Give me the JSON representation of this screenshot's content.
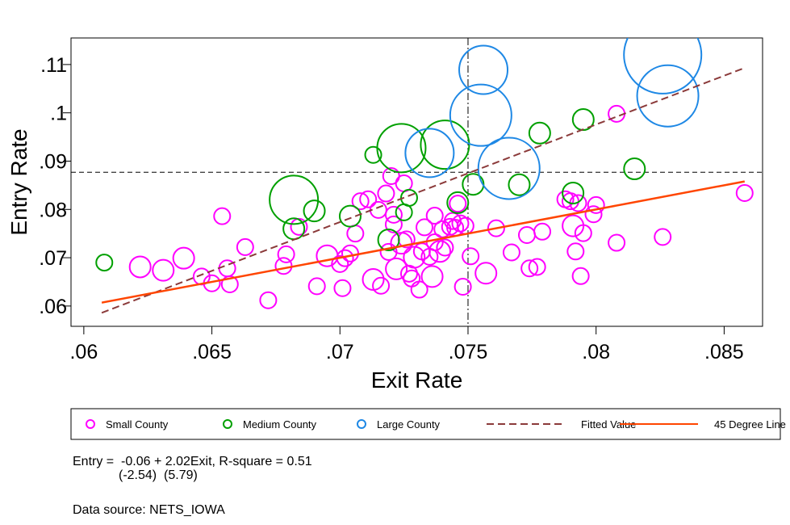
{
  "chart_data": {
    "type": "scatter",
    "xlabel": "Exit Rate",
    "ylabel": "Entry Rate",
    "xlim": [
      0.0595,
      0.0865
    ],
    "ylim": [
      0.0558,
      0.1155
    ],
    "xticks": [
      0.06,
      0.065,
      0.07,
      0.075,
      0.08,
      0.085
    ],
    "xtick_labels": [
      ".06",
      ".065",
      ".07",
      ".075",
      ".08",
      ".085"
    ],
    "yticks": [
      0.06,
      0.07,
      0.08,
      0.09,
      0.1,
      0.11
    ],
    "ytick_labels": [
      ".06",
      ".07",
      ".08",
      ".09",
      ".1",
      ".11"
    ],
    "grid": false,
    "legend_position": "bottom",
    "reference_lines": {
      "mean_exit": 0.075,
      "mean_entry": 0.0877
    },
    "series": [
      {
        "name": "Small County",
        "color": "#ff00ff",
        "points": [
          [
            0.0622,
            0.0681,
            2
          ],
          [
            0.0631,
            0.0674,
            2
          ],
          [
            0.0639,
            0.0699,
            2
          ],
          [
            0.0646,
            0.0661,
            1
          ],
          [
            0.065,
            0.0647,
            1
          ],
          [
            0.0654,
            0.0786,
            1
          ],
          [
            0.0657,
            0.0645,
            1
          ],
          [
            0.0656,
            0.0678,
            1
          ],
          [
            0.0663,
            0.0722,
            1
          ],
          [
            0.0672,
            0.0612,
            1
          ],
          [
            0.0678,
            0.0683,
            1
          ],
          [
            0.0679,
            0.0707,
            1
          ],
          [
            0.0684,
            0.0764,
            1
          ],
          [
            0.0691,
            0.0641,
            1
          ],
          [
            0.0695,
            0.0704,
            2
          ],
          [
            0.0701,
            0.0637,
            1
          ],
          [
            0.07,
            0.0687,
            1
          ],
          [
            0.0702,
            0.0699,
            1
          ],
          [
            0.0704,
            0.0709,
            1
          ],
          [
            0.0706,
            0.075,
            1
          ],
          [
            0.0708,
            0.0817,
            1
          ],
          [
            0.0711,
            0.0821,
            1
          ],
          [
            0.0713,
            0.0655,
            2
          ],
          [
            0.0715,
            0.0799,
            1
          ],
          [
            0.0716,
            0.0642,
            1
          ],
          [
            0.0718,
            0.0833,
            1
          ],
          [
            0.0719,
            0.0712,
            1
          ],
          [
            0.072,
            0.0869,
            1
          ],
          [
            0.0721,
            0.0769,
            1
          ],
          [
            0.0721,
            0.0789,
            1
          ],
          [
            0.0722,
            0.0677,
            2
          ],
          [
            0.0724,
            0.073,
            2
          ],
          [
            0.0725,
            0.0854,
            1
          ],
          [
            0.0726,
            0.0738,
            1
          ],
          [
            0.0727,
            0.0667,
            1
          ],
          [
            0.0728,
            0.0657,
            1
          ],
          [
            0.0729,
            0.0701,
            2
          ],
          [
            0.0731,
            0.0634,
            1
          ],
          [
            0.0732,
            0.0713,
            1
          ],
          [
            0.0733,
            0.0763,
            1
          ],
          [
            0.0735,
            0.0702,
            1
          ],
          [
            0.0736,
            0.0661,
            2
          ],
          [
            0.0737,
            0.0732,
            1
          ],
          [
            0.0737,
            0.0787,
            1
          ],
          [
            0.0739,
            0.0713,
            2
          ],
          [
            0.074,
            0.0759,
            1
          ],
          [
            0.0741,
            0.0721,
            1
          ],
          [
            0.0743,
            0.0764,
            1
          ],
          [
            0.0744,
            0.0776,
            1
          ],
          [
            0.0745,
            0.0762,
            1
          ],
          [
            0.0746,
            0.0812,
            1
          ],
          [
            0.0747,
            0.0771,
            1
          ],
          [
            0.0748,
            0.064,
            1
          ],
          [
            0.0749,
            0.0766,
            1
          ],
          [
            0.0751,
            0.0703,
            1
          ],
          [
            0.0757,
            0.0668,
            2
          ],
          [
            0.0761,
            0.0761,
            1
          ],
          [
            0.0767,
            0.0711,
            1
          ],
          [
            0.0773,
            0.0747,
            1
          ],
          [
            0.0774,
            0.0678,
            1
          ],
          [
            0.0777,
            0.0681,
            1
          ],
          [
            0.0779,
            0.0754,
            1
          ],
          [
            0.0788,
            0.0821,
            1
          ],
          [
            0.079,
            0.0817,
            1
          ],
          [
            0.0791,
            0.0766,
            2
          ],
          [
            0.0792,
            0.0713,
            1
          ],
          [
            0.0793,
            0.0813,
            1
          ],
          [
            0.0794,
            0.0662,
            1
          ],
          [
            0.0795,
            0.0751,
            1
          ],
          [
            0.0799,
            0.079,
            1
          ],
          [
            0.08,
            0.0809,
            1
          ],
          [
            0.0808,
            0.0731,
            1
          ],
          [
            0.0808,
            0.0998,
            1
          ],
          [
            0.0826,
            0.0743,
            1
          ],
          [
            0.0858,
            0.0834,
            1
          ]
        ]
      },
      {
        "name": "Medium County",
        "color": "#00a000",
        "points": [
          [
            0.0608,
            0.069,
            1
          ],
          [
            0.0682,
            0.082,
            3
          ],
          [
            0.0682,
            0.076,
            2
          ],
          [
            0.069,
            0.0797,
            2
          ],
          [
            0.0704,
            0.0786,
            2
          ],
          [
            0.0713,
            0.0913,
            1
          ],
          [
            0.0719,
            0.0737,
            2
          ],
          [
            0.0724,
            0.0927,
            3
          ],
          [
            0.0725,
            0.0794,
            1
          ],
          [
            0.0727,
            0.0824,
            1
          ],
          [
            0.0741,
            0.0934,
            3
          ],
          [
            0.0746,
            0.0814,
            2
          ],
          [
            0.0752,
            0.0852,
            2
          ],
          [
            0.077,
            0.0851,
            2
          ],
          [
            0.0778,
            0.0958,
            2
          ],
          [
            0.0791,
            0.0834,
            2
          ],
          [
            0.0795,
            0.0986,
            2
          ],
          [
            0.0815,
            0.0884,
            2
          ]
        ]
      },
      {
        "name": "Large County",
        "color": "#1e88e5",
        "points": [
          [
            0.0735,
            0.0917,
            3
          ],
          [
            0.0755,
            0.0995,
            4
          ],
          [
            0.0756,
            0.1089,
            3
          ],
          [
            0.0766,
            0.0885,
            4
          ],
          [
            0.0826,
            0.112,
            5
          ],
          [
            0.0828,
            0.1035,
            4
          ]
        ]
      }
    ],
    "lines": [
      {
        "name": "Fitted Value",
        "color": "#8b3a3a",
        "style": "dashed",
        "x": [
          0.0607,
          0.0858
        ],
        "y": [
          0.0586,
          0.1093
        ]
      },
      {
        "name": "45 Degree Line",
        "color": "#ff4500",
        "style": "solid",
        "x": [
          0.0607,
          0.0858
        ],
        "y": [
          0.0607,
          0.0858
        ]
      }
    ],
    "regression": {
      "equation": "Entry =  -0.06 + 2.02Exit, R-square = 0.51",
      "tstats": "(-2.54)  (5.79)"
    },
    "source": "Data source: NETS_IOWA"
  }
}
